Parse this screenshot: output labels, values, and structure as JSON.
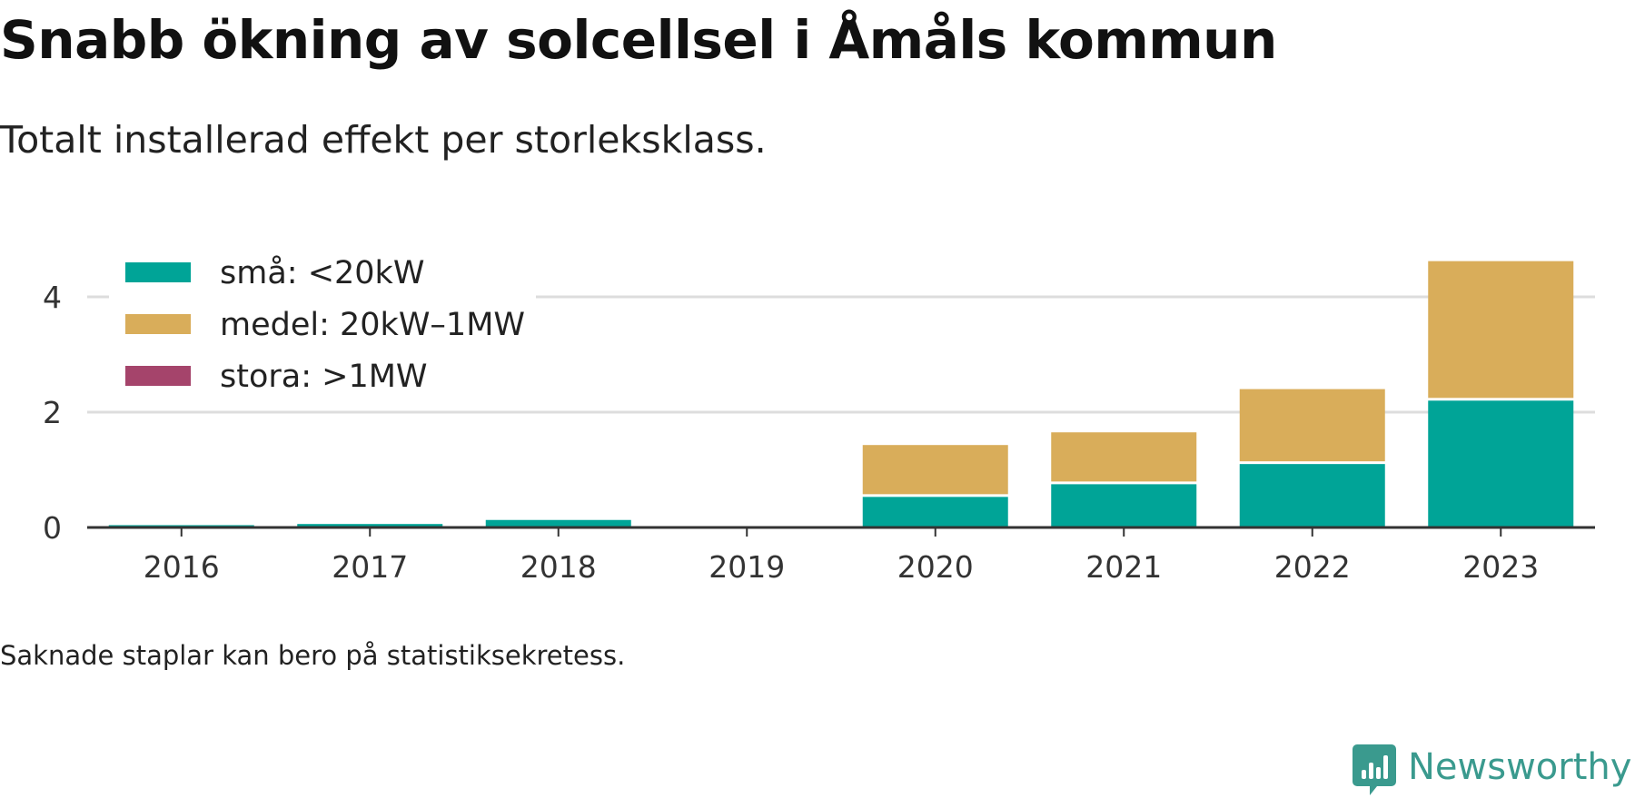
{
  "title": "Snabb ökning av solcellsel i Åmåls kommun",
  "subtitle": "Totalt installerad effekt per storleksklass.",
  "note": "Saknade staplar kan bero på statistiksekretess.",
  "brand": {
    "name": "Newsworthy",
    "icon": "newsworthy-logo-icon",
    "color": "#3a9a8e"
  },
  "chart_data": {
    "type": "bar",
    "stacked": true,
    "categories": [
      "2016",
      "2017",
      "2018",
      "2019",
      "2020",
      "2021",
      "2022",
      "2023"
    ],
    "series": [
      {
        "name": "små: <20kW",
        "color": "#00a497",
        "values": [
          0.04,
          0.06,
          0.13,
          0,
          0.53,
          0.75,
          1.1,
          2.2
        ]
      },
      {
        "name": "medel: 20kW–1MW",
        "color": "#d9ad5a",
        "values": [
          0,
          0,
          0,
          0,
          0.9,
          0.9,
          1.3,
          2.42
        ]
      },
      {
        "name": "stora: >1MW",
        "color": "#a5446b",
        "values": [
          0,
          0,
          0,
          0,
          0,
          0,
          0,
          0
        ]
      }
    ],
    "yticks": [
      "0",
      "2",
      "4"
    ],
    "ylim": [
      0,
      4.8
    ],
    "grid": true,
    "legend": "top-left"
  }
}
